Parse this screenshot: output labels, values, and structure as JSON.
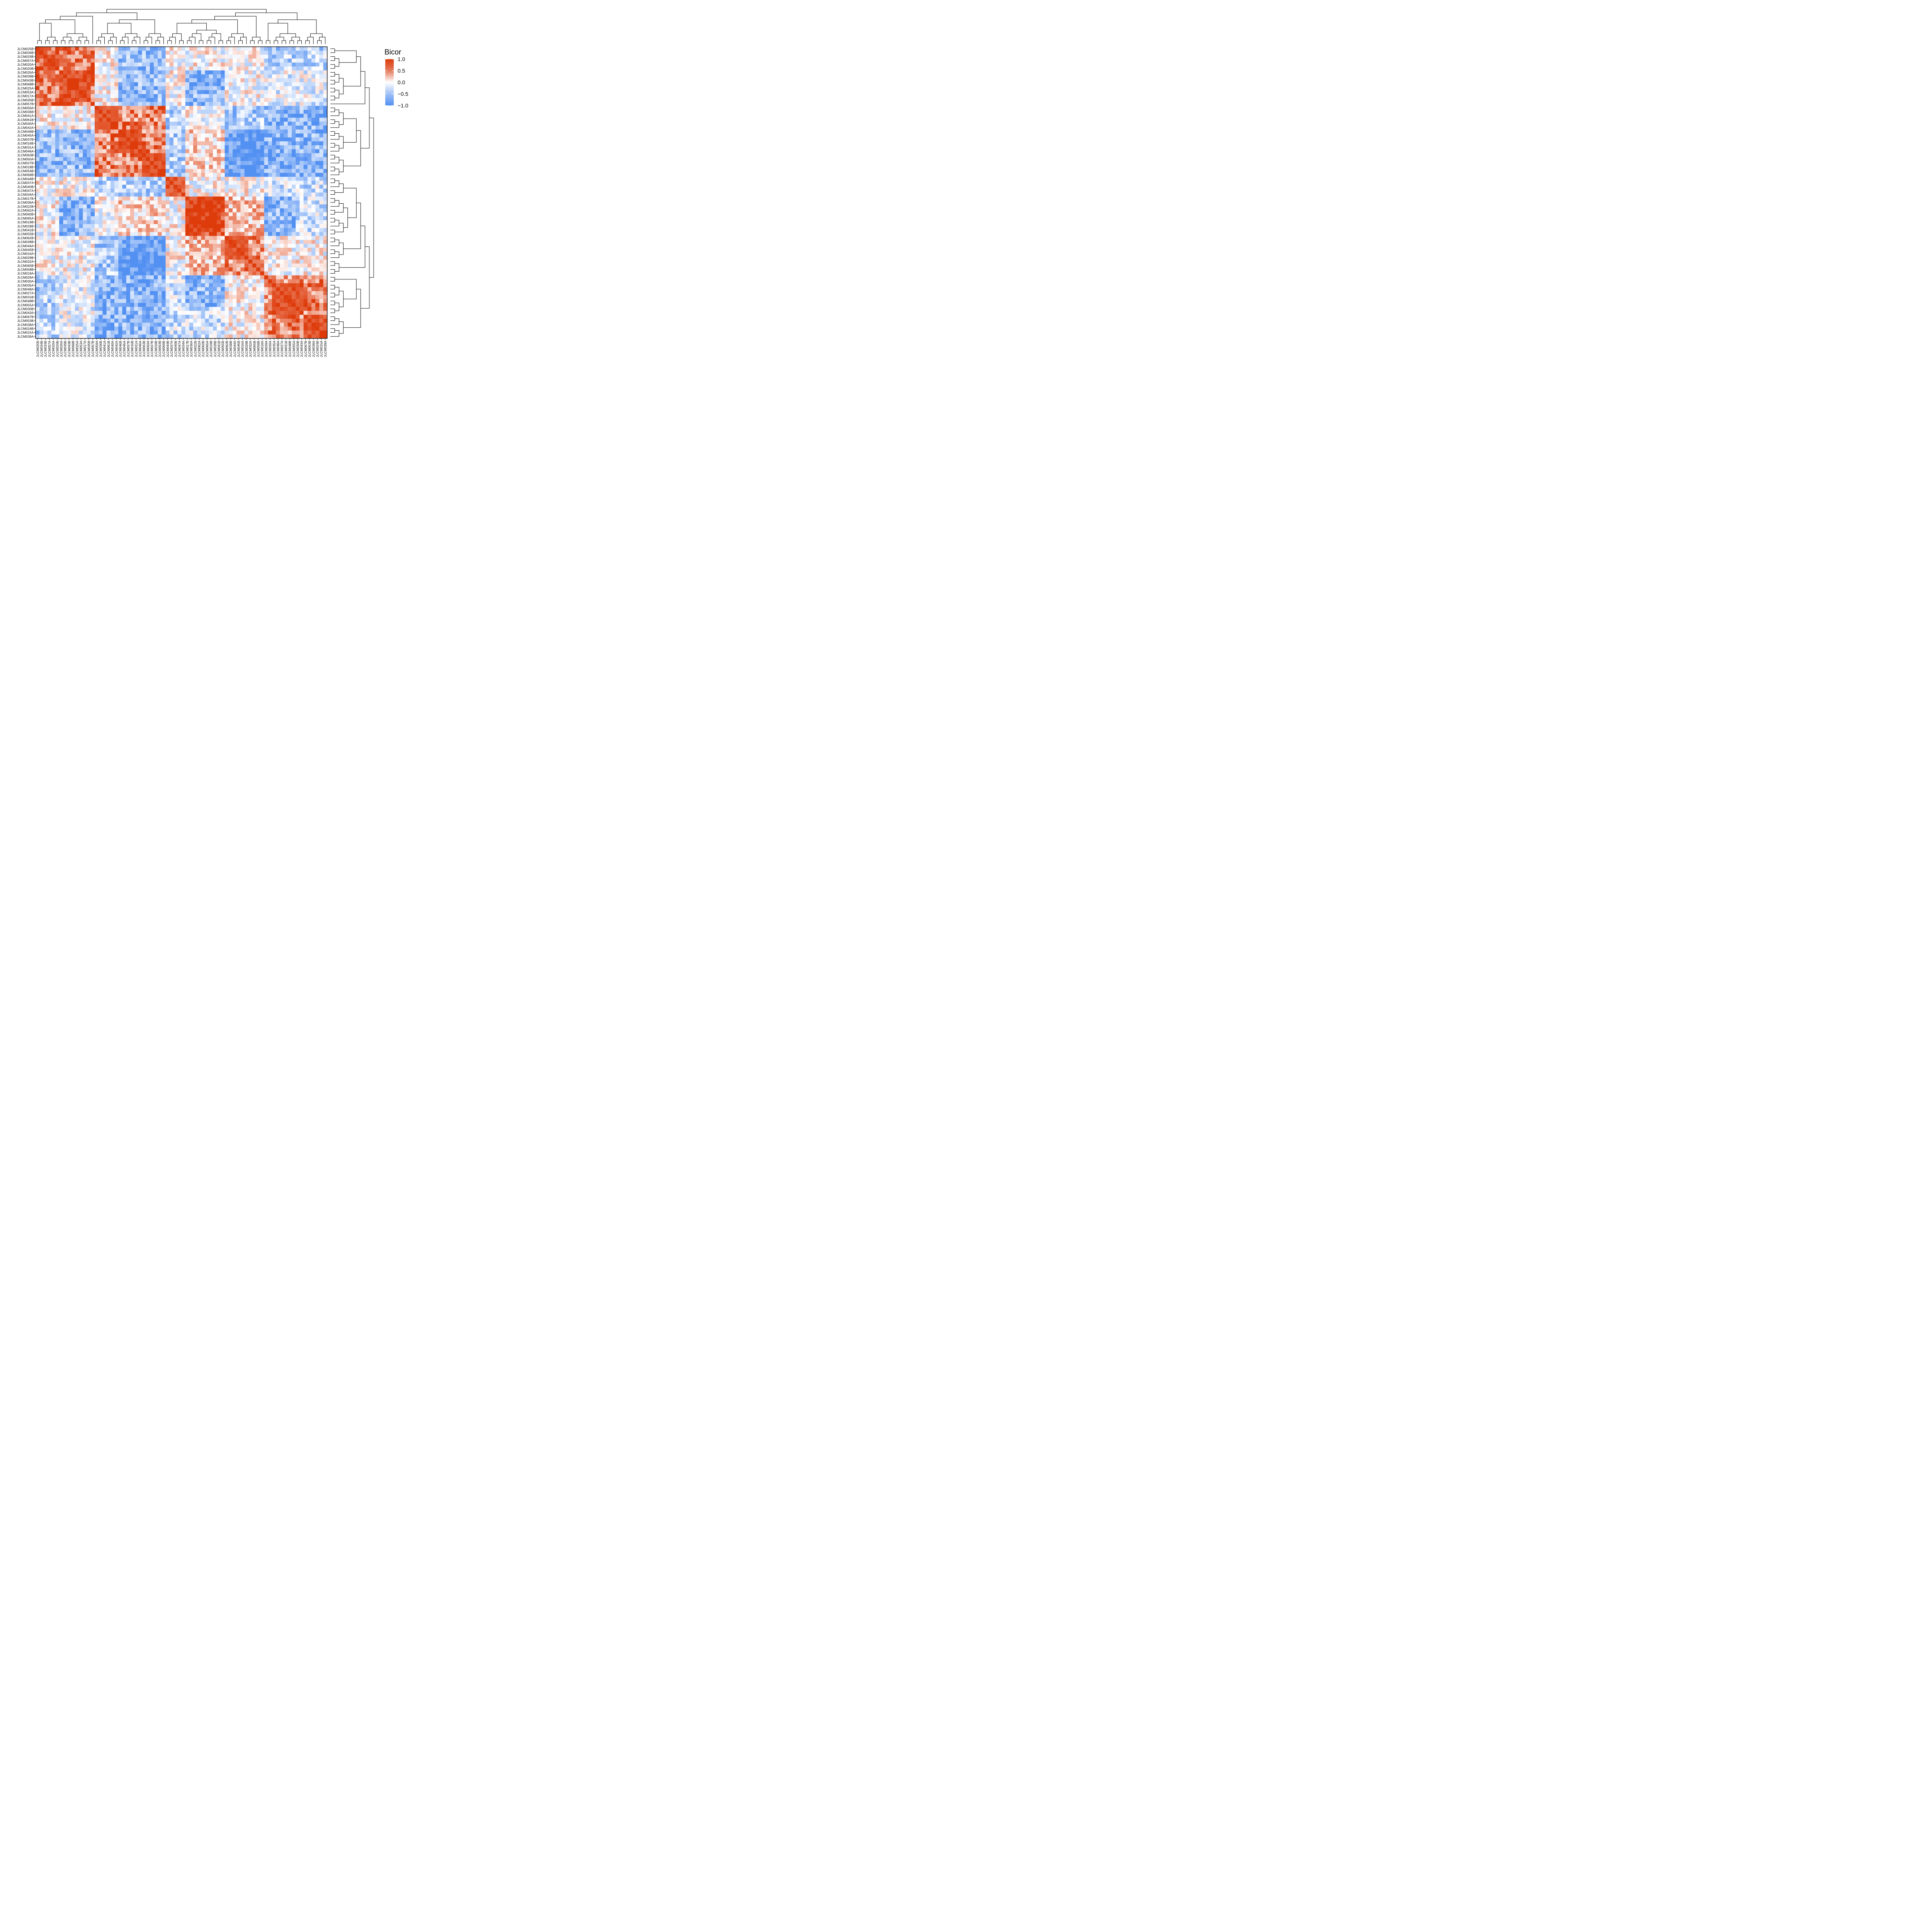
{
  "chart_data": {
    "type": "heatmap",
    "samples": [
      "JLCM025B",
      "JLCM034B",
      "JLCM033B",
      "JLCM057A",
      "JLCM020A",
      "JLCM020B",
      "JLCM026A",
      "JLCM039B",
      "JLCM043B",
      "JLCM068B",
      "JLCM025A",
      "JLCM053A",
      "JLCM017A",
      "JLCM035B",
      "JLCM057B",
      "JLCM059A",
      "JLCM036B",
      "JLCM041A",
      "JLCM061B",
      "JLCM040A",
      "JLCM042A",
      "JLCM046B",
      "JLCM045A",
      "JLCM037B",
      "JLCM016B",
      "JLCM031A",
      "JLCM046A",
      "JLCM063B",
      "JLCM050A",
      "JLCM027B",
      "JLCM018B",
      "JLCM054B",
      "JLCM069B",
      "JLCM044B",
      "JLCM037A",
      "JLCM040B",
      "JLCM047A",
      "JLCM034A",
      "JLCM017B",
      "JLCM036A",
      "JLCM022B",
      "JLCM062A",
      "JLCM060B",
      "JLCM065A",
      "JLCM019B",
      "JLCM028B",
      "JLCM041B",
      "JLCM055B",
      "JLCM062B",
      "JLCM038B",
      "JLCM044A",
      "JLCM045B",
      "JLCM016A",
      "JLCM029B",
      "JLCM032A",
      "JLCM065B",
      "JLCM058B",
      "JLCM018A",
      "JLCM029A",
      "JLCM030A",
      "JLCM035A",
      "JLCM048A",
      "JLCM027A",
      "JLCM031B",
      "JLCM048B",
      "JLCM055A",
      "JLCM030B",
      "JLCM043A",
      "JLCM067B",
      "JLCM053B",
      "JLCM038A",
      "JLCM024B",
      "JLCM015A",
      "JLCM039A"
    ],
    "clusters": [
      {
        "start": 0,
        "end": 1,
        "value": 0.8
      },
      {
        "start": 2,
        "end": 5,
        "value": 0.85
      },
      {
        "start": 6,
        "end": 13,
        "value": 0.85
      },
      {
        "start": 15,
        "end": 20,
        "value": 0.75
      },
      {
        "start": 21,
        "end": 26,
        "value": 0.88
      },
      {
        "start": 27,
        "end": 32,
        "value": 0.8
      },
      {
        "start": 33,
        "end": 37,
        "value": 0.75
      },
      {
        "start": 38,
        "end": 46,
        "value": 0.9
      },
      {
        "start": 48,
        "end": 53,
        "value": 0.85
      },
      {
        "start": 54,
        "end": 57,
        "value": 0.55
      },
      {
        "start": 58,
        "end": 60,
        "value": 0.7
      },
      {
        "start": 60,
        "end": 67,
        "value": 0.85
      },
      {
        "start": 68,
        "end": 73,
        "value": 0.85
      }
    ],
    "block_effects": [
      {
        "rows": [
          0,
          14
        ],
        "cols": [
          0,
          14
        ],
        "value": 0.7
      },
      {
        "rows": [
          15,
          32
        ],
        "cols": [
          15,
          32
        ],
        "value": 0.6
      },
      {
        "rows": [
          33,
          37
        ],
        "cols": [
          33,
          37
        ],
        "value": 0.55
      },
      {
        "rows": [
          38,
          47
        ],
        "cols": [
          38,
          47
        ],
        "value": 0.75
      },
      {
        "rows": [
          48,
          57
        ],
        "cols": [
          48,
          57
        ],
        "value": 0.55
      },
      {
        "rows": [
          58,
          73
        ],
        "cols": [
          58,
          73
        ],
        "value": 0.6
      },
      {
        "rows": [
          6,
          14
        ],
        "cols": [
          38,
          47
        ],
        "value": -0.65
      },
      {
        "rows": [
          6,
          14
        ],
        "cols": [
          58,
          73
        ],
        "value": -0.35
      },
      {
        "rows": [
          0,
          14
        ],
        "cols": [
          21,
          32
        ],
        "value": -0.3
      },
      {
        "rows": [
          15,
          32
        ],
        "cols": [
          33,
          37
        ],
        "value": -0.4
      },
      {
        "rows": [
          15,
          32
        ],
        "cols": [
          48,
          57
        ],
        "value": -0.45
      },
      {
        "rows": [
          15,
          32
        ],
        "cols": [
          58,
          73
        ],
        "value": -0.35
      },
      {
        "rows": [
          21,
          32
        ],
        "cols": [
          0,
          14
        ],
        "value": -0.3
      },
      {
        "rows": [
          38,
          47
        ],
        "cols": [
          58,
          73
        ],
        "value": -0.35
      },
      {
        "rows": [
          38,
          47
        ],
        "cols": [
          21,
          32
        ],
        "value": 0.2
      },
      {
        "rows": [
          38,
          47
        ],
        "cols": [
          48,
          57
        ],
        "value": 0.3
      },
      {
        "rows": [
          48,
          57
        ],
        "cols": [
          21,
          32
        ],
        "value": -0.5
      },
      {
        "rows": [
          58,
          73
        ],
        "cols": [
          33,
          47
        ],
        "value": -0.3
      },
      {
        "rows": [
          58,
          73
        ],
        "cols": [
          15,
          32
        ],
        "value": -0.3
      },
      {
        "rows": [
          58,
          73
        ],
        "cols": [
          0,
          5
        ],
        "value": -0.4
      },
      {
        "rows": [
          58,
          73
        ],
        "cols": [
          6,
          14
        ],
        "value": 0.2
      },
      {
        "rows": [
          66,
          73
        ],
        "cols": [
          38,
          47
        ],
        "value": 0.35
      }
    ],
    "color_scale": {
      "title": "Bicor",
      "min": -1.0,
      "max": 1.0,
      "ticks": [
        1.0,
        0.5,
        0.0,
        -0.5,
        -1.0
      ],
      "tick_labels": [
        "1.0",
        "0.5",
        "0.0",
        "−0.5",
        "−1.0"
      ],
      "low_color": "#5290F2",
      "mid_color": "#FFFFFF",
      "high_color": "#DE3B0B"
    },
    "dendrogram": {
      "shown_on": [
        "top",
        "right"
      ],
      "groups": [
        [
          0,
          1
        ],
        [
          2,
          5
        ],
        [
          6,
          13
        ],
        [
          14,
          14
        ],
        [
          15,
          20
        ],
        [
          21,
          26
        ],
        [
          27,
          32
        ],
        [
          33,
          37
        ],
        [
          38,
          47
        ],
        [
          48,
          53
        ],
        [
          54,
          57
        ],
        [
          58,
          59
        ],
        [
          60,
          67
        ],
        [
          68,
          73
        ]
      ],
      "supergroups": [
        [
          0,
          3
        ],
        [
          4,
          6
        ],
        [
          7,
          10
        ],
        [
          11,
          13
        ]
      ],
      "roots": [
        [
          0,
          1
        ],
        [
          2,
          3
        ]
      ]
    }
  }
}
